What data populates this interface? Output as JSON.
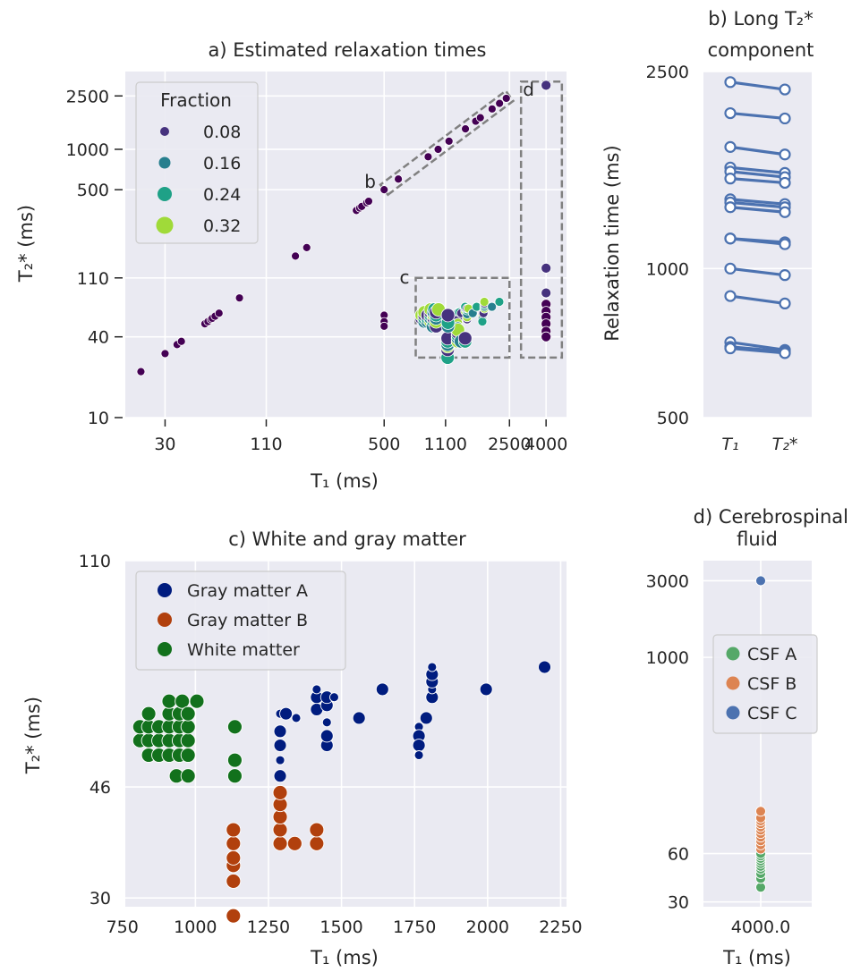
{
  "chart_data": [
    {
      "type": "scatter",
      "panel": "a",
      "title": "a) Estimated relaxation times",
      "xlabel": "T₁ (ms)",
      "ylabel": "T₂* (ms)",
      "xscale": "log",
      "yscale": "log",
      "xticks": [
        30,
        110,
        500,
        1100,
        2500,
        4000
      ],
      "yticks": [
        10,
        40,
        110,
        500,
        1000,
        2500
      ],
      "xlim": [
        18,
        5200
      ],
      "ylim": [
        10,
        3800
      ],
      "grid": true,
      "legend": {
        "title": "Fraction",
        "placement": "top-left",
        "entries": [
          "0.08",
          "0.16",
          "0.24",
          "0.32"
        ]
      },
      "color_scale": {
        "0.08": "#46327e",
        "0.16": "#277f8e",
        "0.24": "#1fa187",
        "0.32": "#a0da39",
        "min": "#440154"
      },
      "diagonal_points": [
        [
          22,
          22
        ],
        [
          30,
          30
        ],
        [
          35,
          35
        ],
        [
          37,
          37
        ],
        [
          50,
          50
        ],
        [
          52,
          52
        ],
        [
          54,
          54
        ],
        [
          55,
          55
        ],
        [
          57,
          57
        ],
        [
          60,
          60
        ],
        [
          78,
          78
        ],
        [
          160,
          160
        ],
        [
          185,
          185
        ],
        [
          350,
          350
        ],
        [
          365,
          365
        ],
        [
          375,
          375
        ],
        [
          400,
          400
        ],
        [
          410,
          410
        ],
        [
          500,
          500
        ],
        [
          600,
          600
        ],
        [
          880,
          880
        ],
        [
          1000,
          1000
        ],
        [
          1150,
          1150
        ],
        [
          1420,
          1420
        ],
        [
          1620,
          1620
        ],
        [
          1720,
          1720
        ],
        [
          2000,
          2000
        ],
        [
          2200,
          2200
        ],
        [
          2400,
          2400
        ]
      ],
      "isolated_points": [
        {
          "x": 500,
          "y": 58
        },
        {
          "x": 500,
          "y": 52
        },
        {
          "x": 500,
          "y": 48
        }
      ],
      "csf_points": [
        {
          "x": 4000,
          "y": 3000
        },
        {
          "x": 4000,
          "y": 130
        },
        {
          "x": 4000,
          "y": 85
        },
        {
          "x": 4000,
          "y": 70
        },
        {
          "x": 4000,
          "y": 62
        },
        {
          "x": 4000,
          "y": 56
        },
        {
          "x": 4000,
          "y": 50
        },
        {
          "x": 4000,
          "y": 44
        },
        {
          "x": 4000,
          "y": 40
        }
      ],
      "annotations": [
        {
          "label": "b",
          "region": {
            "x": [
              500,
              2500
            ],
            "y": [
              500,
              2500
            ]
          }
        },
        {
          "label": "c",
          "region": {
            "x": [
              750,
              2500
            ],
            "y": [
              28,
              110
            ]
          }
        },
        {
          "label": "d",
          "region": {
            "x": [
              2900,
              4900
            ],
            "y": [
              28,
              3200
            ]
          }
        }
      ]
    },
    {
      "type": "line",
      "panel": "b",
      "title_line1": "b) Long T₂*",
      "title_line2": "component",
      "xlabel": "",
      "ylabel": "Relaxation time (ms)",
      "categories": [
        "T₁",
        "T₂*"
      ],
      "yticks": [
        500,
        1000,
        2500
      ],
      "ylim": [
        500,
        2500
      ],
      "grid": true,
      "color": "#4c72b0",
      "series": [
        {
          "values": [
            2380,
            2300
          ]
        },
        {
          "values": [
            2060,
            2010
          ]
        },
        {
          "values": [
            1760,
            1700
          ]
        },
        {
          "values": [
            1600,
            1560
          ]
        },
        {
          "values": [
            1570,
            1530
          ]
        },
        {
          "values": [
            1520,
            1490
          ]
        },
        {
          "values": [
            1380,
            1350
          ]
        },
        {
          "values": [
            1360,
            1330
          ]
        },
        {
          "values": [
            1330,
            1300
          ]
        },
        {
          "values": [
            1150,
            1130
          ]
        },
        {
          "values": [
            1150,
            1120
          ]
        },
        {
          "values": [
            1000,
            970
          ]
        },
        {
          "values": [
            880,
            850
          ]
        },
        {
          "values": [
            710,
            685
          ]
        },
        {
          "values": [
            695,
            680
          ]
        },
        {
          "values": [
            690,
            675
          ]
        }
      ]
    },
    {
      "type": "scatter",
      "panel": "c",
      "title": "c) White and gray matter",
      "xlabel": "T₁ (ms)",
      "ylabel": "T₂* (ms)",
      "xlim": [
        760,
        2270
      ],
      "ylim": [
        29,
        110
      ],
      "yscale": "log",
      "xticks": [
        750,
        1000,
        1250,
        1500,
        1750,
        2000,
        2250
      ],
      "yticks": [
        30,
        46,
        110
      ],
      "grid": true,
      "legend": {
        "placement": "top-left"
      },
      "series": [
        {
          "name": "Gray matter A",
          "color": "#001c7f",
          "points": [
            [
              1290,
              61
            ],
            [
              1290,
              57
            ],
            [
              1290,
              54
            ],
            [
              1290,
              51
            ],
            [
              1290,
              48
            ],
            [
              1310,
              61
            ],
            [
              1345,
              60
            ],
            [
              1415,
              62
            ],
            [
              1415,
              65
            ],
            [
              1415,
              67
            ],
            [
              1450,
              54
            ],
            [
              1450,
              56
            ],
            [
              1450,
              59
            ],
            [
              1450,
              63
            ],
            [
              1450,
              65
            ],
            [
              1475,
              65
            ],
            [
              1560,
              60
            ],
            [
              1640,
              67
            ],
            [
              1765,
              58
            ],
            [
              1765,
              56
            ],
            [
              1765,
              54
            ],
            [
              1765,
              52
            ],
            [
              1790,
              60
            ],
            [
              1810,
              65
            ],
            [
              1810,
              67
            ],
            [
              1810,
              69
            ],
            [
              1810,
              71
            ],
            [
              1810,
              73
            ],
            [
              1995,
              67
            ],
            [
              2195,
              73
            ]
          ]
        },
        {
          "name": "Gray matter B",
          "color": "#b1400d",
          "points": [
            [
              1130,
              28
            ],
            [
              1130,
              32
            ],
            [
              1130,
              34
            ],
            [
              1130,
              35
            ],
            [
              1130,
              37
            ],
            [
              1130,
              39
            ],
            [
              1290,
              37
            ],
            [
              1290,
              39
            ],
            [
              1290,
              41
            ],
            [
              1290,
              43
            ],
            [
              1290,
              45
            ],
            [
              1340,
              37
            ],
            [
              1415,
              37
            ],
            [
              1415,
              39
            ]
          ]
        },
        {
          "name": "White matter",
          "color": "#12711c",
          "points": [
            [
              810,
              55
            ],
            [
              810,
              58
            ],
            [
              840,
              52
            ],
            [
              840,
              55
            ],
            [
              840,
              58
            ],
            [
              840,
              61
            ],
            [
              875,
              52
            ],
            [
              875,
              55
            ],
            [
              875,
              58
            ],
            [
              910,
              52
            ],
            [
              910,
              55
            ],
            [
              910,
              58
            ],
            [
              910,
              61
            ],
            [
              910,
              64
            ],
            [
              935,
              48
            ],
            [
              945,
              52
            ],
            [
              945,
              55
            ],
            [
              945,
              58
            ],
            [
              945,
              61
            ],
            [
              955,
              64
            ],
            [
              975,
              48
            ],
            [
              975,
              52
            ],
            [
              975,
              55
            ],
            [
              975,
              58
            ],
            [
              975,
              61
            ],
            [
              1005,
              64
            ],
            [
              1135,
              48
            ],
            [
              1135,
              51
            ],
            [
              1135,
              58
            ]
          ]
        }
      ]
    },
    {
      "type": "scatter",
      "panel": "d",
      "title_line1": "d) Cerebrospinal",
      "title_line2": "fluid",
      "xlabel": "T₁ (ms)",
      "ylabel": "",
      "xticks": [
        "4000.0"
      ],
      "yticks": [
        30,
        60,
        1000,
        3000
      ],
      "ylim": [
        28,
        4000
      ],
      "yscale": "log",
      "grid": true,
      "legend": {
        "placement": "center-right"
      },
      "series": [
        {
          "name": "CSF A",
          "color": "#55a868",
          "values": [
            37,
            42,
            45,
            48,
            50,
            52,
            54,
            56,
            58,
            60
          ]
        },
        {
          "name": "CSF B",
          "color": "#dd8452",
          "values": [
            64,
            68,
            72,
            76,
            80,
            84,
            88,
            92,
            96,
            100,
            110
          ]
        },
        {
          "name": "CSF C",
          "color": "#4c72b0",
          "values": [
            3000
          ]
        }
      ]
    }
  ]
}
